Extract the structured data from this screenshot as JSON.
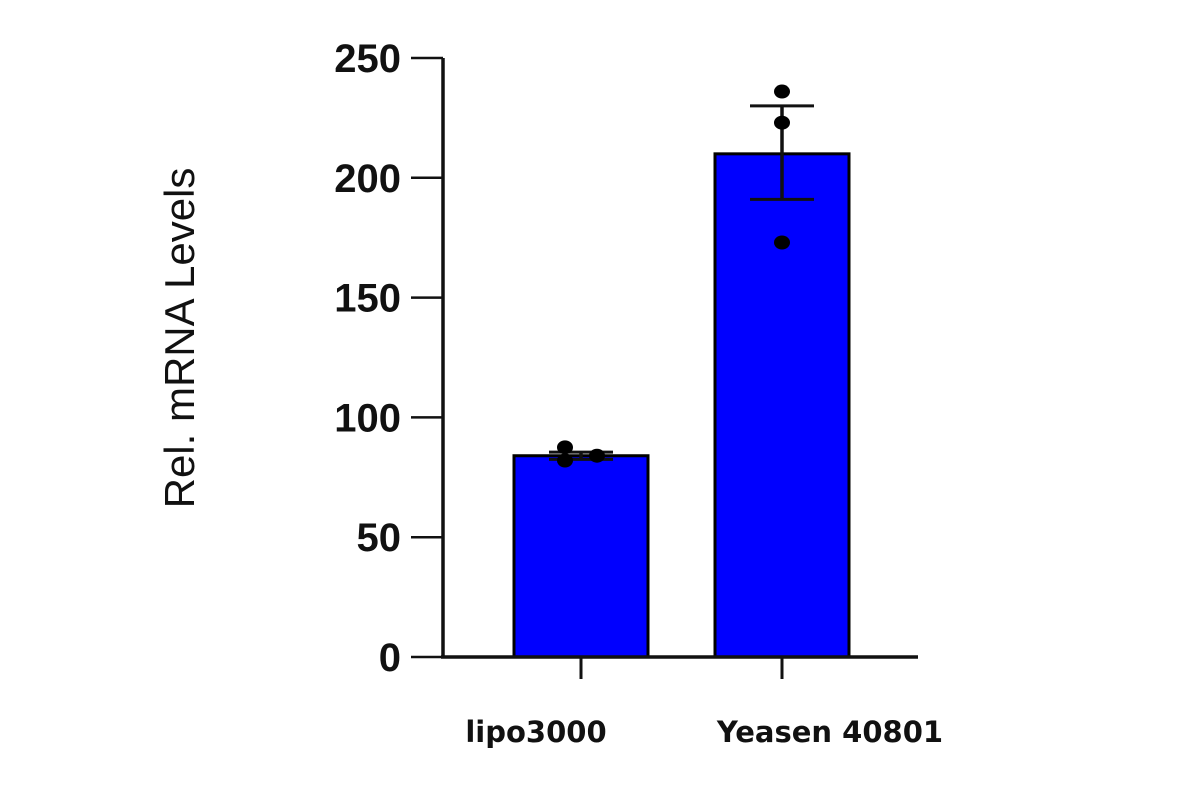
{
  "chart_data": {
    "type": "bar",
    "title": "",
    "xlabel": "",
    "ylabel": "Rel. mRNA Levels",
    "ylim": [
      0,
      250
    ],
    "yticks": [
      0,
      50,
      100,
      150,
      200,
      250
    ],
    "ytick_labels": [
      "0",
      "50",
      "100",
      "150",
      "200",
      "250"
    ],
    "grid": false,
    "legend": null,
    "categories": [
      "lipo3000",
      "Yeasen 40801"
    ],
    "values": [
      84,
      210
    ],
    "error": [
      [
        82.5,
        85.5
      ],
      [
        191,
        230
      ]
    ],
    "points": [
      [
        87.5,
        82,
        84
      ],
      [
        236,
        223,
        173
      ]
    ],
    "bar_color": "#0000ff",
    "edge_color": "#000000"
  }
}
